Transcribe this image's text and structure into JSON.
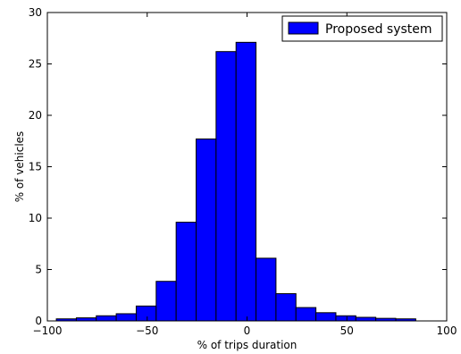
{
  "chart_data": {
    "type": "bar",
    "histogram": true,
    "xlabel": "% of trips duration",
    "ylabel": "% of vehicles",
    "xlim": [
      -100,
      100
    ],
    "ylim": [
      0,
      30
    ],
    "xticks": [
      -100,
      -50,
      0,
      50,
      100
    ],
    "xtick_labels": [
      "−100",
      "−50",
      "0",
      "50",
      "100"
    ],
    "yticks": [
      0,
      5,
      10,
      15,
      20,
      25,
      30
    ],
    "ytick_labels": [
      "0",
      "5",
      "10",
      "15",
      "20",
      "25",
      "30"
    ],
    "grid": false,
    "legend_position": "top-right",
    "bin_edges": [
      -95.5,
      -85.5,
      -75.5,
      -65.5,
      -55.5,
      -45.5,
      -35.5,
      -25.5,
      -15.5,
      -5.5,
      4.5,
      14.5,
      24.5,
      34.5,
      44.5,
      54.5,
      64.5,
      74.5,
      84.5
    ],
    "series": [
      {
        "name": "Proposed system",
        "color": "#0000ff",
        "values": [
          0.2,
          0.3,
          0.5,
          0.7,
          1.45,
          3.85,
          9.6,
          17.7,
          26.2,
          27.1,
          6.1,
          2.65,
          1.3,
          0.8,
          0.5,
          0.35,
          0.25,
          0.2
        ]
      }
    ]
  }
}
